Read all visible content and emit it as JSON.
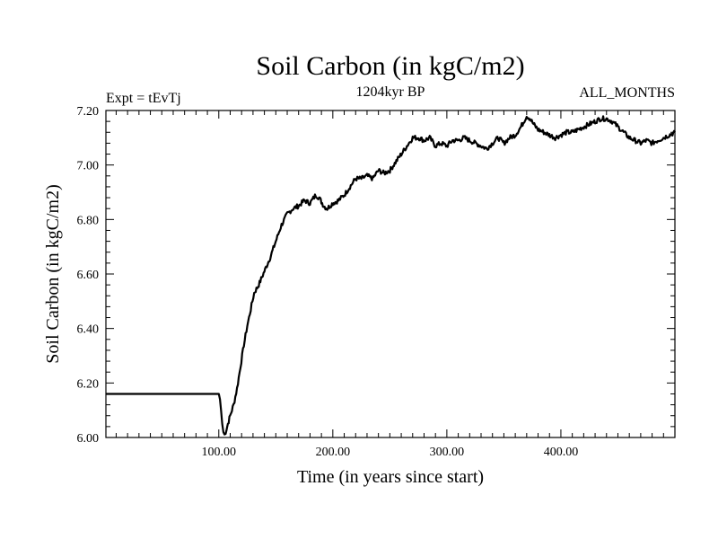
{
  "chart_data": {
    "type": "line",
    "title": "Soil Carbon (in kgC/m2)",
    "subtitle": "1204kyr BP",
    "left_annotation": "Expt = tEvTj",
    "right_annotation": "ALL_MONTHS",
    "xlabel": "Time (in years since start)",
    "ylabel": "Soil Carbon (in kgC/m2)",
    "xlim": [
      1,
      500
    ],
    "ylim": [
      6.0,
      7.2
    ],
    "x_major_ticks": [
      100,
      200,
      300,
      400
    ],
    "x_tick_labels": [
      "100.00",
      "200.00",
      "300.00",
      "400.00"
    ],
    "y_major_ticks": [
      6.0,
      6.2,
      6.4,
      6.6,
      6.8,
      7.0,
      7.2
    ],
    "y_tick_labels": [
      "6.00",
      "6.20",
      "6.40",
      "6.60",
      "6.80",
      "7.00",
      "7.20"
    ],
    "series": [
      {
        "name": "Soil Carbon",
        "color": "#000000",
        "x": [
          1,
          100,
          101,
          102,
          103,
          104,
          105,
          106,
          108,
          110,
          113,
          116,
          119,
          122,
          125,
          128,
          131,
          135,
          140,
          145,
          150,
          155,
          160,
          165,
          170,
          175,
          180,
          185,
          188,
          192,
          195,
          200,
          205,
          210,
          215,
          220,
          225,
          230,
          235,
          240,
          245,
          250,
          255,
          260,
          265,
          270,
          275,
          280,
          285,
          290,
          295,
          300,
          305,
          310,
          315,
          320,
          325,
          330,
          335,
          340,
          345,
          350,
          355,
          360,
          365,
          370,
          373,
          376,
          380,
          385,
          390,
          395,
          400,
          405,
          410,
          415,
          420,
          425,
          430,
          435,
          440,
          445,
          450,
          455,
          460,
          465,
          470,
          475,
          480,
          485,
          490,
          495,
          500
        ],
        "y": [
          6.16,
          6.16,
          6.14,
          6.1,
          6.05,
          6.02,
          6.01,
          6.02,
          6.05,
          6.08,
          6.12,
          6.18,
          6.26,
          6.34,
          6.41,
          6.47,
          6.53,
          6.56,
          6.61,
          6.66,
          6.72,
          6.78,
          6.82,
          6.84,
          6.85,
          6.87,
          6.86,
          6.89,
          6.88,
          6.85,
          6.84,
          6.86,
          6.87,
          6.89,
          6.92,
          6.95,
          6.95,
          6.96,
          6.95,
          6.98,
          6.97,
          6.98,
          7.01,
          7.04,
          7.07,
          7.1,
          7.1,
          7.09,
          7.1,
          7.07,
          7.08,
          7.07,
          7.09,
          7.09,
          7.1,
          7.09,
          7.08,
          7.07,
          7.06,
          7.08,
          7.1,
          7.08,
          7.1,
          7.11,
          7.14,
          7.18,
          7.17,
          7.15,
          7.13,
          7.12,
          7.11,
          7.1,
          7.11,
          7.12,
          7.12,
          7.13,
          7.14,
          7.15,
          7.16,
          7.17,
          7.17,
          7.16,
          7.14,
          7.12,
          7.1,
          7.09,
          7.08,
          7.09,
          7.08,
          7.09,
          7.1,
          7.11,
          7.12
        ]
      }
    ]
  }
}
